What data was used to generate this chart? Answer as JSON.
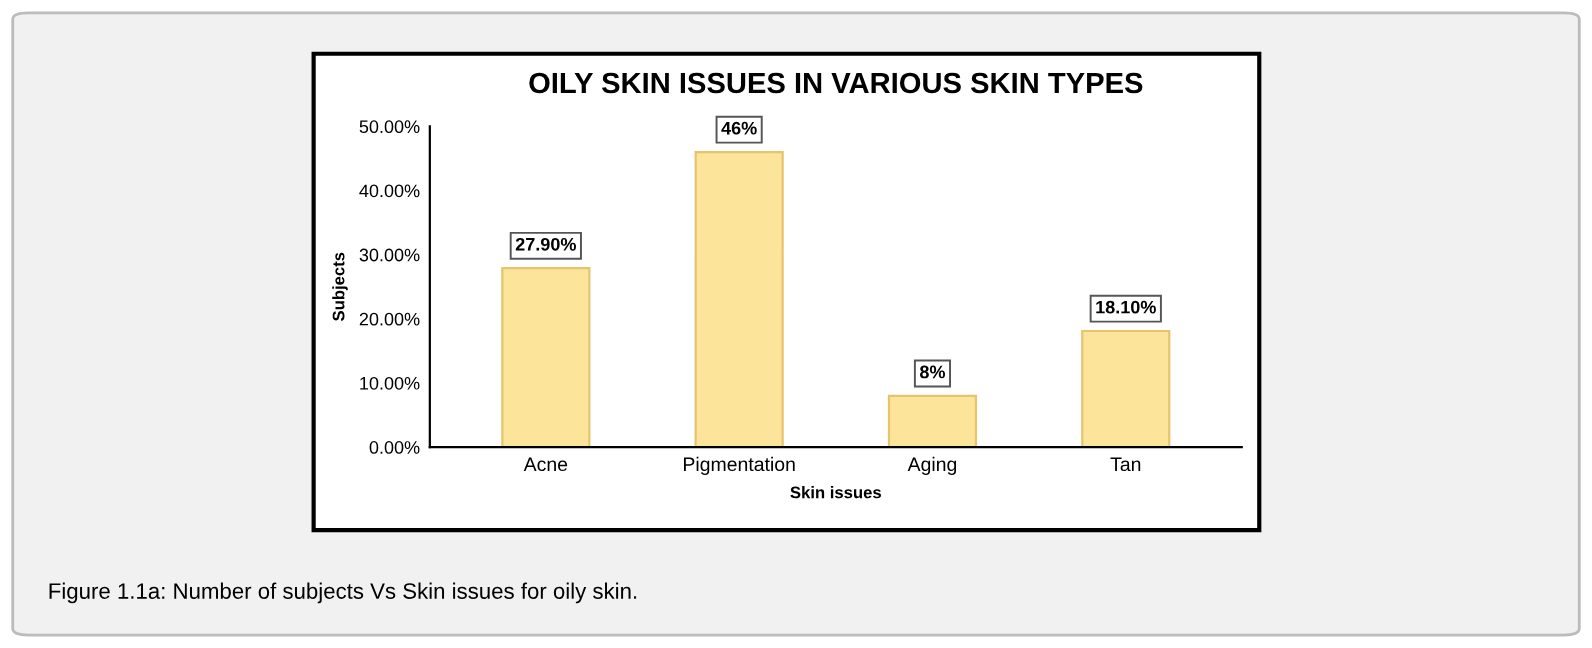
{
  "chart_data": {
    "type": "bar",
    "title": "OILY SKIN ISSUES IN VARIOUS SKIN TYPES",
    "xlabel": "Skin issues",
    "ylabel": "Subjects",
    "categories": [
      "Acne",
      "Pigmentation",
      "Aging",
      "Tan"
    ],
    "values": [
      27.9,
      46,
      8,
      18.1
    ],
    "color": "#fde49b",
    "value_labels": [
      "27.90%",
      "46%",
      "8%",
      "18.10%"
    ],
    "ylim": [
      0,
      50
    ],
    "yticks": [
      {
        "value": 0,
        "label": "0.00%"
      },
      {
        "value": 10,
        "label": "10.00%"
      },
      {
        "value": 20,
        "label": "20.00%"
      },
      {
        "value": 30,
        "label": "30.00%"
      },
      {
        "value": 40,
        "label": "40.00%"
      },
      {
        "value": 50,
        "label": "50.00%"
      }
    ],
    "grid": false,
    "legend": false,
    "annotations": [
      "Figure 1.1a: Number of subjects Vs Skin issues for oily skin."
    ]
  }
}
